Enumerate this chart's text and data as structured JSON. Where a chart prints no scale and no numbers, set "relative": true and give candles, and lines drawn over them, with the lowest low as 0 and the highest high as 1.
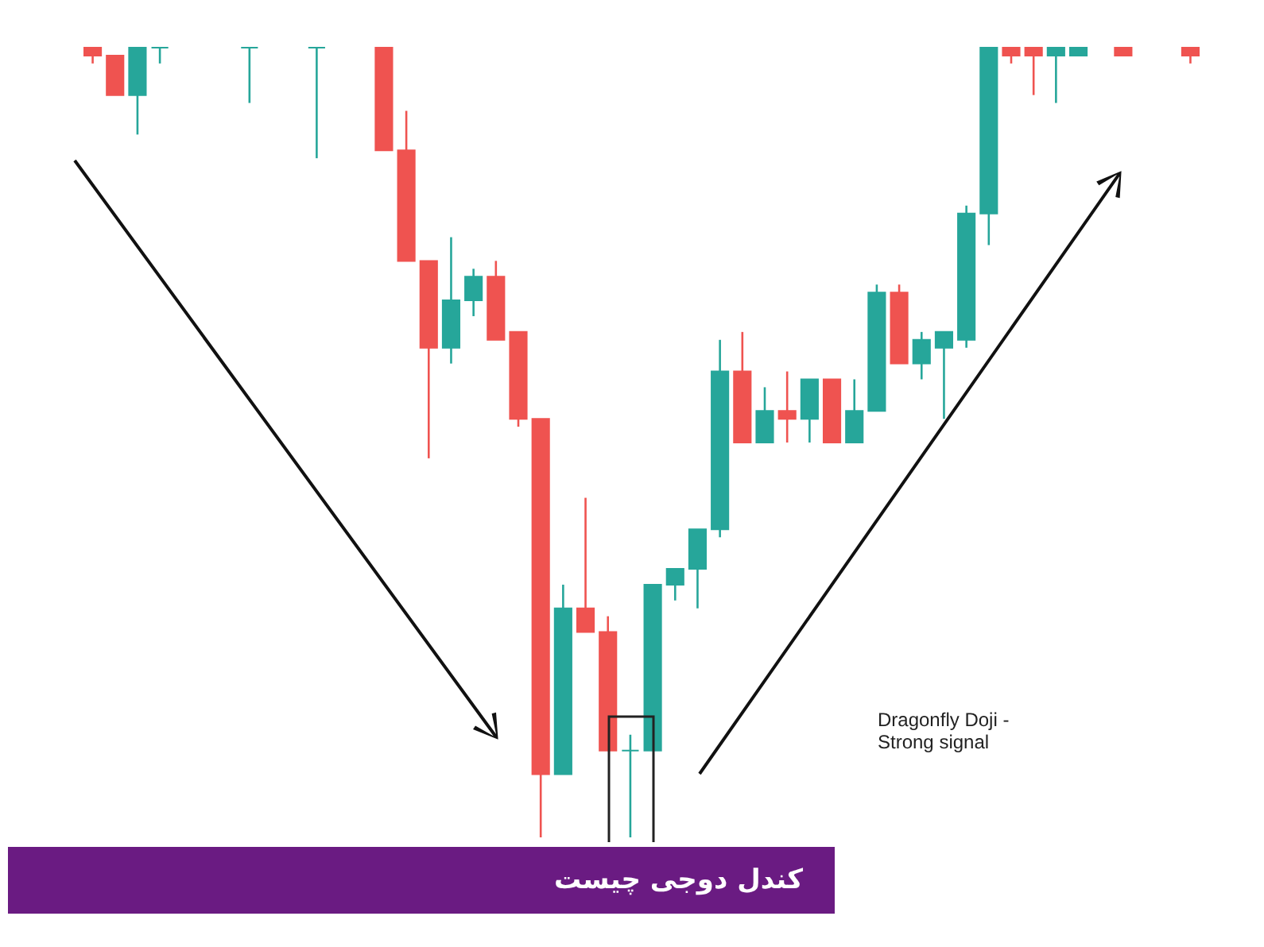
{
  "chart_data": {
    "type": "candlestick",
    "title": "کندل دوجی چیست",
    "relative": true,
    "annotations": [
      "Dragonfly Doji - Strong signal"
    ],
    "categories": [
      null,
      null,
      null,
      null,
      null,
      null,
      null,
      null,
      null,
      null,
      null,
      null,
      null,
      null,
      null,
      null,
      null,
      null,
      null,
      null,
      null,
      null,
      null,
      null,
      null,
      null,
      null,
      null,
      null,
      null,
      null,
      null,
      null,
      null,
      null,
      null,
      null,
      null,
      null,
      null,
      null,
      null,
      null,
      null,
      null,
      null,
      null,
      null,
      null,
      null
    ],
    "ohlc": [
      [
        1,
        1,
        0.98,
        0.99
      ],
      [
        0.99,
        0.99,
        0.94,
        0.94
      ],
      [
        0.94,
        1,
        0.89,
        1
      ],
      [
        1,
        1,
        0.98,
        1
      ],
      null,
      null,
      null,
      [
        1,
        1,
        0.93,
        1
      ],
      null,
      null,
      [
        1,
        1,
        0.86,
        1
      ],
      null,
      null,
      [
        1,
        1,
        0.87,
        0.87
      ],
      [
        0.87,
        0.92,
        0.73,
        0.73
      ],
      [
        0.73,
        0.73,
        0.48,
        0.62
      ],
      [
        0.62,
        0.76,
        0.6,
        0.68
      ],
      [
        0.68,
        0.72,
        0.66,
        0.71
      ],
      [
        0.71,
        0.73,
        0.63,
        0.63
      ],
      [
        0.64,
        0.64,
        0.52,
        0.53
      ],
      [
        0.53,
        0.53,
        0,
        0.08
      ],
      [
        0.08,
        0.32,
        0.08,
        0.29
      ],
      [
        0.29,
        0.43,
        0.26,
        0.26
      ],
      [
        0.26,
        0.28,
        0.11,
        0.11
      ],
      [
        0.11,
        0.13,
        0,
        0.11
      ],
      [
        0.11,
        0.32,
        0.11,
        0.32
      ],
      [
        0.32,
        0.34,
        0.3,
        0.34
      ],
      [
        0.34,
        0.39,
        0.29,
        0.39
      ],
      [
        0.39,
        0.63,
        0.38,
        0.59
      ],
      [
        0.59,
        0.64,
        0.5,
        0.5
      ],
      [
        0.5,
        0.57,
        0.5,
        0.54
      ],
      [
        0.54,
        0.59,
        0.5,
        0.53
      ],
      [
        0.53,
        0.58,
        0.5,
        0.58
      ],
      [
        0.58,
        0.58,
        0.5,
        0.5
      ],
      [
        0.5,
        0.58,
        0.5,
        0.54
      ],
      [
        0.54,
        0.7,
        0.54,
        0.69
      ],
      [
        0.69,
        0.7,
        0.6,
        0.6
      ],
      [
        0.6,
        0.64,
        0.58,
        0.63
      ],
      [
        0.62,
        0.64,
        0.53,
        0.64
      ],
      [
        0.63,
        0.8,
        0.62,
        0.79
      ],
      [
        0.79,
        1,
        0.75,
        1
      ],
      [
        1,
        1,
        0.98,
        0.99
      ],
      [
        1,
        1,
        0.94,
        0.99
      ],
      [
        0.99,
        1,
        0.93,
        1
      ],
      [
        0.99,
        1,
        0.99,
        1
      ],
      null,
      [
        1,
        1,
        0.99,
        0.99
      ],
      null,
      null,
      [
        1,
        1,
        0.98,
        0.99
      ]
    ],
    "colors": [
      "#ef5350",
      "#ef5350",
      "#26a69a",
      "#26a69a",
      null,
      null,
      null,
      "#26a69a",
      null,
      null,
      "#26a69a",
      null,
      null,
      "#ef5350",
      "#ef5350",
      "#ef5350",
      "#26a69a",
      "#26a69a",
      "#ef5350",
      "#ef5350",
      "#ef5350",
      "#26a69a",
      "#ef5350",
      "#ef5350",
      "#26a69a",
      "#26a69a",
      "#26a69a",
      "#26a69a",
      "#26a69a",
      "#ef5350",
      "#26a69a",
      "#ef5350",
      "#26a69a",
      "#ef5350",
      "#26a69a",
      "#26a69a",
      "#ef5350",
      "#26a69a",
      "#26a69a",
      "#26a69a",
      "#26a69a",
      "#ef5350",
      "#ef5350",
      "#26a69a",
      "#26a69a",
      null,
      "#ef5350",
      null,
      null,
      "#ef5350"
    ]
  }
}
